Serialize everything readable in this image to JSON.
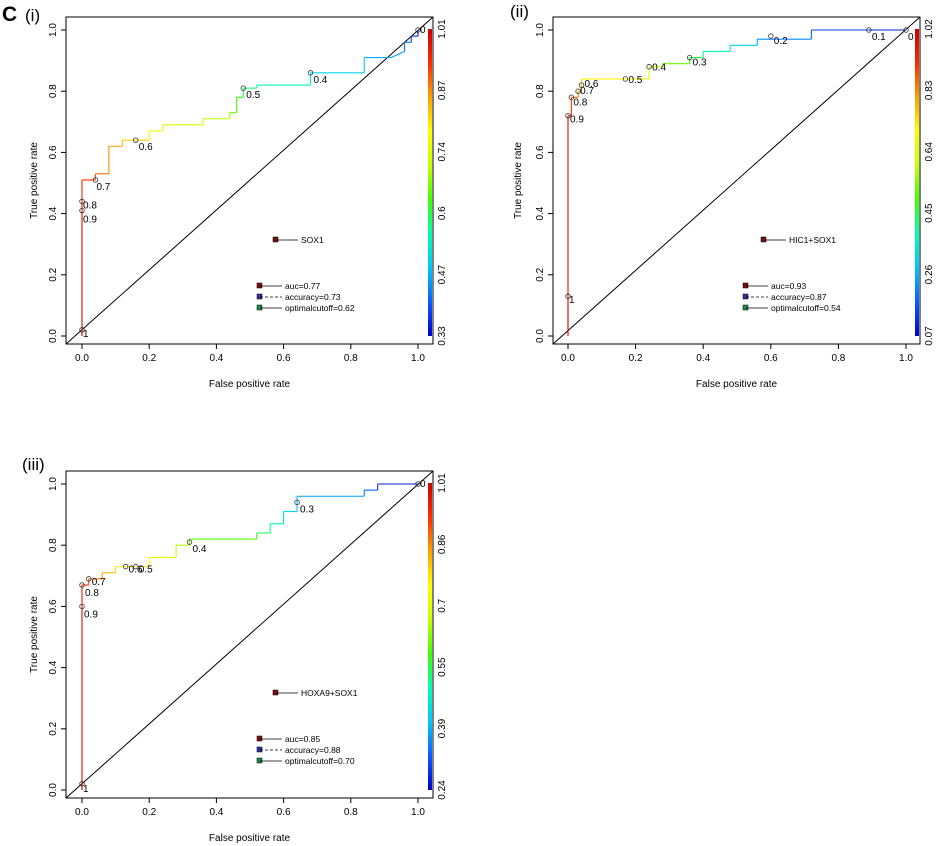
{
  "figure_label": "C",
  "colors": {
    "legend_marker": "#7a1010",
    "accuracy_marker": "#3030a0",
    "cutoff_marker": "#1f8a4c",
    "colorbar": [
      "#0000cc",
      "#0a5cff",
      "#00c8ff",
      "#00ffb0",
      "#40ff00",
      "#c8ff00",
      "#ffff00",
      "#ffa000",
      "#ff2a00",
      "#cc0000"
    ]
  },
  "chart_data": [
    {
      "type": "line",
      "subtitle": "(i)",
      "xlabel": "False positive rate",
      "ylabel": "True positive rate",
      "xlim": [
        0,
        1
      ],
      "ylim": [
        0,
        1
      ],
      "x_ticks": [
        "0.0",
        "0.2",
        "0.4",
        "0.6",
        "0.8",
        "1.0"
      ],
      "y_ticks": [
        "0.0",
        "0.2",
        "0.4",
        "0.6",
        "0.8",
        "1.0"
      ],
      "series_name": "SOX1",
      "legend": {
        "auc": "auc=0.77",
        "accuracy": "accuracy=0.73",
        "cutoff": "optimalcutoff=0.62"
      },
      "colorbar_labels": [
        "0.33",
        "0.47",
        "0.6",
        "0.74",
        "0.87",
        "1.01"
      ],
      "roc": [
        [
          0,
          0
        ],
        [
          0,
          0.02
        ],
        [
          0,
          0.41
        ],
        [
          0,
          0.44
        ],
        [
          0,
          0.51
        ],
        [
          0.04,
          0.51
        ],
        [
          0.04,
          0.53
        ],
        [
          0.08,
          0.53
        ],
        [
          0.08,
          0.62
        ],
        [
          0.12,
          0.62
        ],
        [
          0.12,
          0.64
        ],
        [
          0.2,
          0.64
        ],
        [
          0.2,
          0.67
        ],
        [
          0.24,
          0.67
        ],
        [
          0.24,
          0.69
        ],
        [
          0.36,
          0.69
        ],
        [
          0.36,
          0.71
        ],
        [
          0.44,
          0.71
        ],
        [
          0.44,
          0.73
        ],
        [
          0.46,
          0.73
        ],
        [
          0.46,
          0.78
        ],
        [
          0.48,
          0.78
        ],
        [
          0.48,
          0.81
        ],
        [
          0.52,
          0.81
        ],
        [
          0.52,
          0.82
        ],
        [
          0.68,
          0.82
        ],
        [
          0.68,
          0.86
        ],
        [
          0.84,
          0.86
        ],
        [
          0.84,
          0.91
        ],
        [
          0.92,
          0.91
        ],
        [
          0.96,
          0.93
        ],
        [
          0.96,
          0.96
        ],
        [
          0.98,
          0.96
        ],
        [
          0.98,
          0.98
        ],
        [
          1,
          0.98
        ],
        [
          1,
          1
        ]
      ],
      "cutoff_points": [
        {
          "label": "1",
          "fpr": 0,
          "tpr": 0.02
        },
        {
          "label": "0.9",
          "fpr": 0,
          "tpr": 0.41
        },
        {
          "label": "0.8",
          "fpr": 0,
          "tpr": 0.44
        },
        {
          "label": "0.7",
          "fpr": 0.04,
          "tpr": 0.51
        },
        {
          "label": "0.6",
          "fpr": 0.16,
          "tpr": 0.64
        },
        {
          "label": "0.5",
          "fpr": 0.48,
          "tpr": 0.81
        },
        {
          "label": "0.4",
          "fpr": 0.68,
          "tpr": 0.86
        },
        {
          "label": "0",
          "fpr": 1,
          "tpr": 1
        }
      ]
    },
    {
      "type": "line",
      "subtitle": "(ii)",
      "xlabel": "False positive rate",
      "ylabel": "True positive rate",
      "xlim": [
        0,
        1
      ],
      "ylim": [
        0,
        1
      ],
      "x_ticks": [
        "0.0",
        "0.2",
        "0.4",
        "0.6",
        "0.8",
        "1.0"
      ],
      "y_ticks": [
        "0.0",
        "0.2",
        "0.4",
        "0.6",
        "0.8",
        "1.0"
      ],
      "series_name": "HIC1+SOX1",
      "legend": {
        "auc": "auc=0.93",
        "accuracy": "accuracy=0.87",
        "cutoff": "optimalcutoff=0.54"
      },
      "colorbar_labels": [
        "0.07",
        "0.26",
        "0.45",
        "0.64",
        "0.83",
        "1.02"
      ],
      "roc": [
        [
          0,
          0
        ],
        [
          0,
          0.13
        ],
        [
          0,
          0.72
        ],
        [
          0.01,
          0.72
        ],
        [
          0.01,
          0.78
        ],
        [
          0.03,
          0.78
        ],
        [
          0.03,
          0.8
        ],
        [
          0.04,
          0.8
        ],
        [
          0.04,
          0.84
        ],
        [
          0.17,
          0.84
        ],
        [
          0.24,
          0.84
        ],
        [
          0.24,
          0.88
        ],
        [
          0.28,
          0.88
        ],
        [
          0.28,
          0.89
        ],
        [
          0.36,
          0.89
        ],
        [
          0.36,
          0.91
        ],
        [
          0.4,
          0.91
        ],
        [
          0.4,
          0.93
        ],
        [
          0.48,
          0.93
        ],
        [
          0.48,
          0.95
        ],
        [
          0.56,
          0.95
        ],
        [
          0.56,
          0.97
        ],
        [
          0.72,
          0.97
        ],
        [
          0.72,
          1
        ],
        [
          0.89,
          1
        ],
        [
          1,
          1
        ]
      ],
      "cutoff_points": [
        {
          "label": "1",
          "fpr": 0,
          "tpr": 0.13
        },
        {
          "label": "0.9",
          "fpr": 0,
          "tpr": 0.72
        },
        {
          "label": "0.8",
          "fpr": 0.01,
          "tpr": 0.78
        },
        {
          "label": "0.7",
          "fpr": 0.03,
          "tpr": 0.8
        },
        {
          "label": "0.6",
          "fpr": 0.04,
          "tpr": 0.82
        },
        {
          "label": "0.5",
          "fpr": 0.17,
          "tpr": 0.84
        },
        {
          "label": "0.4",
          "fpr": 0.24,
          "tpr": 0.88
        },
        {
          "label": "0.3",
          "fpr": 0.36,
          "tpr": 0.91
        },
        {
          "label": "0.2",
          "fpr": 0.6,
          "tpr": 0.98
        },
        {
          "label": "0.1",
          "fpr": 0.89,
          "tpr": 1
        },
        {
          "label": "0",
          "fpr": 1,
          "tpr": 1
        }
      ]
    },
    {
      "type": "line",
      "subtitle": "(iii)",
      "xlabel": "False positive rate",
      "ylabel": "True positive rate",
      "xlim": [
        0,
        1
      ],
      "ylim": [
        0,
        1
      ],
      "x_ticks": [
        "0.0",
        "0.2",
        "0.4",
        "0.6",
        "0.8",
        "1.0"
      ],
      "y_ticks": [
        "0.0",
        "0.2",
        "0.4",
        "0.6",
        "0.8",
        "1.0"
      ],
      "series_name": "HOXA9+SOX1",
      "legend": {
        "auc": "auc=0.85",
        "accuracy": "accuracy=0.88",
        "cutoff": "optimalcutoff=0.70"
      },
      "colorbar_labels": [
        "0.24",
        "0.39",
        "0.55",
        "0.7",
        "0.86",
        "1.01"
      ],
      "roc": [
        [
          0,
          0
        ],
        [
          0,
          0.02
        ],
        [
          0,
          0.6
        ],
        [
          0,
          0.67
        ],
        [
          0.02,
          0.67
        ],
        [
          0.02,
          0.69
        ],
        [
          0.06,
          0.69
        ],
        [
          0.06,
          0.71
        ],
        [
          0.1,
          0.71
        ],
        [
          0.1,
          0.73
        ],
        [
          0.2,
          0.73
        ],
        [
          0.2,
          0.76
        ],
        [
          0.28,
          0.76
        ],
        [
          0.28,
          0.8
        ],
        [
          0.32,
          0.8
        ],
        [
          0.32,
          0.82
        ],
        [
          0.52,
          0.82
        ],
        [
          0.52,
          0.84
        ],
        [
          0.56,
          0.84
        ],
        [
          0.56,
          0.87
        ],
        [
          0.6,
          0.87
        ],
        [
          0.6,
          0.91
        ],
        [
          0.64,
          0.91
        ],
        [
          0.64,
          0.96
        ],
        [
          0.84,
          0.96
        ],
        [
          0.84,
          0.98
        ],
        [
          0.88,
          0.98
        ],
        [
          0.88,
          1
        ],
        [
          1,
          1
        ]
      ],
      "cutoff_points": [
        {
          "label": "1",
          "fpr": 0,
          "tpr": 0.02
        },
        {
          "label": "0.9",
          "fpr": 0,
          "tpr": 0.6
        },
        {
          "label": "0.8",
          "fpr": 0,
          "tpr": 0.67
        },
        {
          "label": "0.7",
          "fpr": 0.02,
          "tpr": 0.69
        },
        {
          "label": "0.6",
          "fpr": 0.13,
          "tpr": 0.73
        },
        {
          "label": "0.5",
          "fpr": 0.16,
          "tpr": 0.73
        },
        {
          "label": "0.4",
          "fpr": 0.32,
          "tpr": 0.81
        },
        {
          "label": "0.3",
          "fpr": 0.64,
          "tpr": 0.94
        },
        {
          "label": "0",
          "fpr": 1,
          "tpr": 1
        }
      ]
    }
  ]
}
